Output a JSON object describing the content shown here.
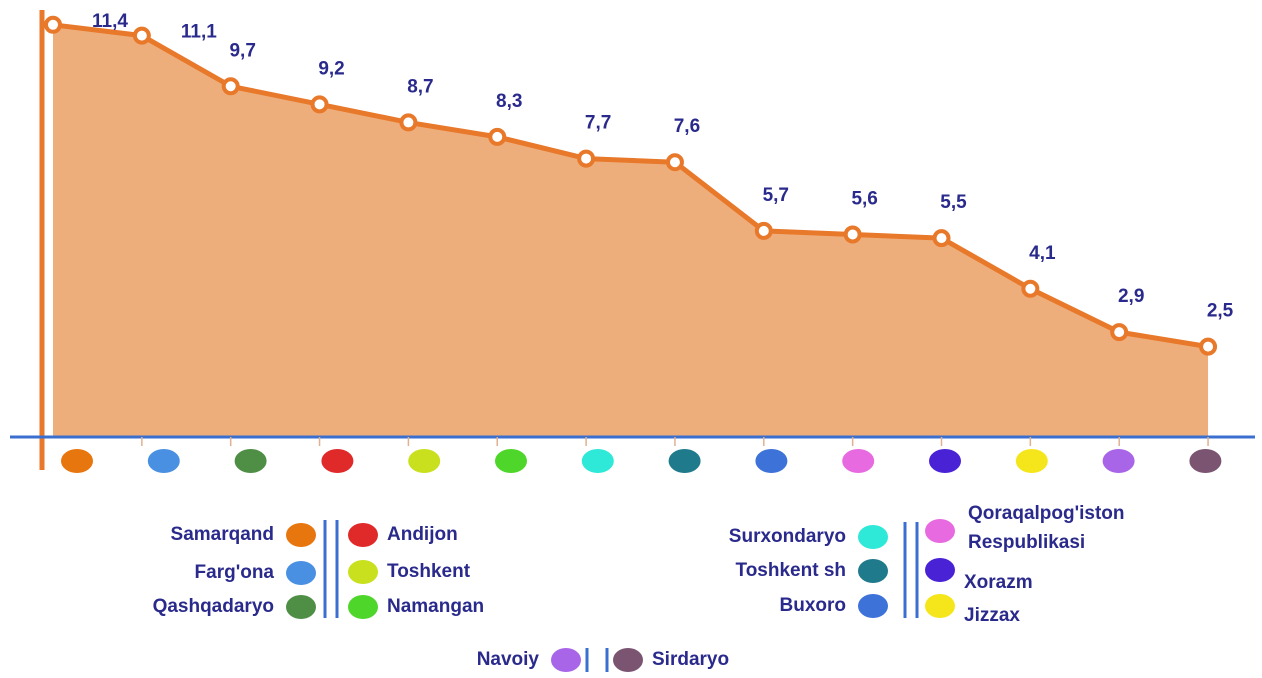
{
  "chart_data": {
    "type": "area",
    "categories": [
      "Samarqand",
      "Farg'ona",
      "Qashqadaryo",
      "Andijon",
      "Toshkent",
      "Namangan",
      "Surxondaryo",
      "Toshkent sh",
      "Buxoro",
      "Qoraqalpog'iston Respublikasi",
      "Xorazm",
      "Jizzax",
      "Navoiy",
      "Sirdaryo"
    ],
    "values": [
      11.4,
      11.1,
      9.7,
      9.2,
      8.7,
      8.3,
      7.7,
      7.6,
      5.7,
      5.6,
      5.5,
      4.1,
      2.9,
      2.5
    ],
    "value_labels": [
      "11,4",
      "11,1",
      "9,7",
      "9,2",
      "8,7",
      "8,3",
      "7,7",
      "7,6",
      "5,7",
      "5,6",
      "5,5",
      "4,1",
      "2,9",
      "2,5"
    ],
    "color": "#e8782a",
    "colors": [
      "#e8760f",
      "#4a90e2",
      "#4f8f45",
      "#e02a2a",
      "#c8e01e",
      "#4fd62a",
      "#2ee8d8",
      "#1f7a8c",
      "#3d72d9",
      "#e86ae0",
      "#4a22d6",
      "#f5e61c",
      "#a865e8",
      "#7a5470"
    ],
    "ylim": [
      0,
      12
    ]
  }
}
